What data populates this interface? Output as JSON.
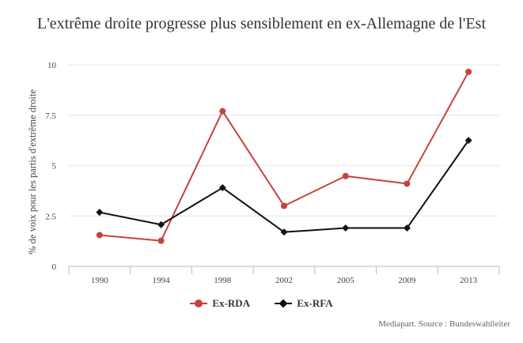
{
  "page": {
    "credit": "Mediapart. Source : Bundeswahlleiter"
  },
  "chart_data": {
    "type": "line",
    "title": "L'extrême droite progresse plus sensiblement en ex-Allemagne de l'Est",
    "xlabel": "",
    "ylabel": "% de voix pour les partis d'extrême droite",
    "categories": [
      "1990",
      "1994",
      "1998",
      "2002",
      "2005",
      "2009",
      "2013"
    ],
    "ylim": [
      0,
      10
    ],
    "yticks": [
      0,
      2.5,
      5,
      7.5,
      10
    ],
    "ytick_labels": [
      "0",
      "2.5",
      "5",
      "7.5",
      "10"
    ],
    "grid": true,
    "legend": "bottom",
    "series": [
      {
        "name": "Ex-RDA",
        "color": "#c8413c",
        "marker": "circle",
        "values": [
          1.55,
          1.27,
          7.7,
          3.0,
          4.48,
          4.1,
          9.65
        ]
      },
      {
        "name": "Ex-RFA",
        "color": "#111111",
        "marker": "diamond",
        "values": [
          2.68,
          2.07,
          3.9,
          1.7,
          1.9,
          1.9,
          6.25
        ]
      }
    ]
  }
}
